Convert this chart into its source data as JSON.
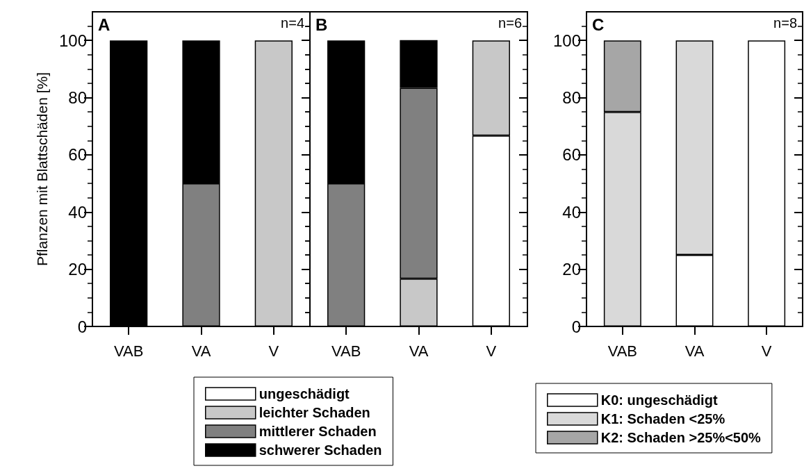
{
  "chart_data": [
    {
      "type": "bar",
      "stacked": true,
      "ylabel": "Pflanzen mit Blattschäden [%]",
      "annotations": [
        "A",
        "n=4"
      ],
      "categories": [
        "VAB",
        "VA",
        "V"
      ],
      "ylim": [
        0,
        110
      ],
      "yticks": [
        0,
        20,
        40,
        60,
        80,
        100
      ],
      "legend": false,
      "series": [
        {
          "color": "#ffffff",
          "values": [
            null,
            null,
            null
          ]
        },
        {
          "color": "#c8c8c8",
          "values": [
            null,
            null,
            100
          ]
        },
        {
          "color": "#808080",
          "values": [
            null,
            50,
            null
          ]
        },
        {
          "color": "#000000",
          "values": [
            100,
            50,
            null
          ]
        }
      ]
    },
    {
      "type": "bar",
      "stacked": true,
      "annotations": [
        "B",
        "n=6"
      ],
      "categories": [
        "VAB",
        "VA",
        "V"
      ],
      "ylim": [
        0,
        110
      ],
      "yticks": [
        0,
        20,
        40,
        60,
        80,
        100
      ],
      "tick_labels": "x",
      "legend": "bottom",
      "series": [
        {
          "name": "ungeschädigt",
          "color": "#ffffff",
          "values": [
            null,
            null,
            66.7
          ]
        },
        {
          "name": "leichter Schaden",
          "color": "#c8c8c8",
          "values": [
            null,
            16.7,
            33.3
          ]
        },
        {
          "name": "mittlerer Schaden",
          "color": "#808080",
          "values": [
            50,
            66.7,
            null
          ]
        },
        {
          "name": "schwerer Schaden",
          "color": "#000000",
          "values": [
            50,
            16.7,
            null
          ]
        }
      ]
    },
    {
      "type": "bar",
      "stacked": true,
      "annotations": [
        "C",
        "n=8"
      ],
      "categories": [
        "VAB",
        "VA",
        "V"
      ],
      "ylim": [
        0,
        110
      ],
      "yticks": [
        0,
        20,
        40,
        60,
        80,
        100
      ],
      "legend": "bottom",
      "series": [
        {
          "name": "K0: ungeschädigt",
          "color": "#ffffff",
          "values": [
            null,
            25,
            100
          ]
        },
        {
          "name": "K1: Schaden <25%",
          "color": "#d9d9d9",
          "values": [
            75,
            75,
            null
          ]
        },
        {
          "name": "K2: Schaden >25%<50%",
          "color": "#a6a6a6",
          "values": [
            25,
            null,
            null
          ]
        }
      ]
    }
  ]
}
